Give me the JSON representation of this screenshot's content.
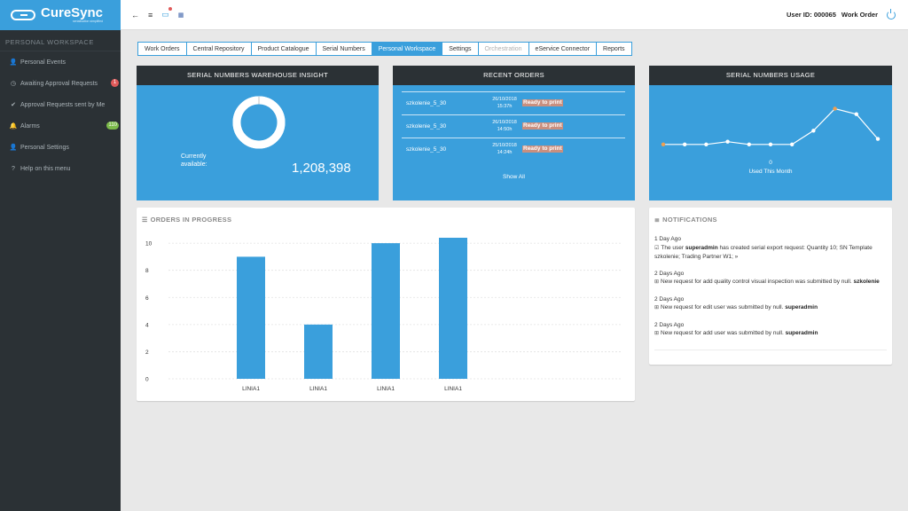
{
  "app": {
    "name": "CureSync",
    "tagline": "serialisation simplified"
  },
  "topbar": {
    "user_id": "User ID: 000065",
    "user_name": "Work Order"
  },
  "sidebar": {
    "section_title": "PERSONAL WORKSPACE",
    "items": [
      {
        "label": "Personal Events",
        "icon": "user-icon",
        "glyph": "👤"
      },
      {
        "label": "Awaiting Approval Requests",
        "icon": "clock-icon",
        "glyph": "◷",
        "badge": "1",
        "badge_color": "#e05a5a"
      },
      {
        "label": "Approval Requests sent by Me",
        "icon": "check-icon",
        "glyph": "✔"
      },
      {
        "label": "Alarms",
        "icon": "bell-icon",
        "glyph": "🔔",
        "badge": "110",
        "badge_color": "#7cba4a"
      },
      {
        "label": "Personal Settings",
        "icon": "user-icon",
        "glyph": "👤"
      },
      {
        "label": "Help on this menu",
        "icon": "question-icon",
        "glyph": "?"
      }
    ]
  },
  "tabs": [
    {
      "label": "Work Orders",
      "state": "normal"
    },
    {
      "label": "Central Repository",
      "state": "normal"
    },
    {
      "label": "Product Catalogue",
      "state": "normal"
    },
    {
      "label": "Serial Numbers",
      "state": "normal"
    },
    {
      "label": "Personal Workspace",
      "state": "active"
    },
    {
      "label": "Settings",
      "state": "normal"
    },
    {
      "label": "Orchestration",
      "state": "disabled"
    },
    {
      "label": "eService Connector",
      "state": "normal"
    },
    {
      "label": "Reports",
      "state": "normal"
    }
  ],
  "warehouse": {
    "title": "SERIAL NUMBERS WAREHOUSE INSIGHT",
    "available_label_1": "Currently",
    "available_label_2": "available:",
    "available_value": "1,208,398",
    "available_fraction": 0.99
  },
  "recent_orders": {
    "title": "RECENT ORDERS",
    "rows": [
      {
        "name": "szkolenie_5_30",
        "date": "26/10/2018",
        "time": "15:37h",
        "status": "Ready to print"
      },
      {
        "name": "szkolenie_5_30",
        "date": "26/10/2018",
        "time": "14:50h",
        "status": "Ready to print"
      },
      {
        "name": "szkolenie_5_30",
        "date": "25/10/2018",
        "time": "14:24h",
        "status": "Ready to print"
      }
    ],
    "show_all": "Show All"
  },
  "usage": {
    "title": "SERIAL NUMBERS USAGE",
    "value": "0",
    "label": "Used This Month",
    "points": [
      0.1,
      0.1,
      0.1,
      0.15,
      0.1,
      0.1,
      0.1,
      0.35,
      0.75,
      0.65,
      0.2
    ],
    "highlight": [
      0,
      8
    ]
  },
  "orders_in_progress": {
    "title": "ORDERS IN PROGRESS"
  },
  "chart_data": {
    "type": "bar",
    "categories": [
      "LINIA1",
      "LINIA1",
      "LINIA1",
      "LINIA1"
    ],
    "values": [
      9,
      4,
      10,
      10.4
    ],
    "title": "ORDERS IN PROGRESS",
    "xlabel": "",
    "ylabel": "",
    "ylim": [
      0,
      10.4
    ],
    "yticks": [
      0,
      2,
      4,
      6,
      8,
      10
    ],
    "grid": true,
    "color": "#3a9fdc"
  },
  "notifications": {
    "title": "NOTIFICATIONS",
    "items": [
      {
        "time": "1 Day Ago",
        "icon": "checkbox-icon",
        "glyph": "☑",
        "text": "The user ",
        "bold": "superadmin",
        "text2": " has created serial export request: Quantity 10; SN Template szkolenie; Trading Partner W1; »"
      },
      {
        "time": "2 Days Ago",
        "icon": "plus-icon",
        "glyph": "⊞",
        "text": "New request for add quality control visual inspection was submitted by null. ",
        "bold": "szkolenie",
        "text2": ""
      },
      {
        "time": "2 Days Ago",
        "icon": "plus-icon",
        "glyph": "⊞",
        "text": "New request for edit user was submitted by null. ",
        "bold": "superadmin",
        "text2": ""
      },
      {
        "time": "2 Days Ago",
        "icon": "plus-icon",
        "glyph": "⊞",
        "text": "New request for add user was submitted by null. ",
        "bold": "superadmin",
        "text2": ""
      }
    ]
  },
  "colors": {
    "accent": "#3a9fdc",
    "dark": "#2b3135",
    "highlight_point": "#f0a050"
  }
}
